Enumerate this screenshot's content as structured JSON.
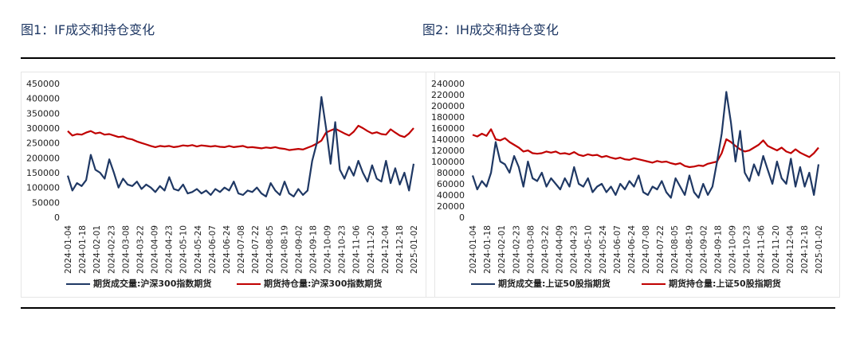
{
  "titles": {
    "left": "图1：IF成交和持仓变化",
    "right": "图2：IH成交和持仓变化"
  },
  "chart_data": [
    {
      "type": "line",
      "x_ticks": [
        "2024-01-04",
        "2024-01-18",
        "2024-02-01",
        "2024-02-23",
        "2024-03-08",
        "2024-03-22",
        "2024-04-09",
        "2024-04-23",
        "2024-05-10",
        "2024-05-24",
        "2024-06-07",
        "2024-06-24",
        "2024-07-08",
        "2024-07-22",
        "2024-08-05",
        "2024-08-19",
        "2024-09-02",
        "2024-09-18",
        "2024-10-09",
        "2024-10-23",
        "2024-11-06",
        "2024-11-20",
        "2024-12-04",
        "2024-12-18",
        "2025-01-02"
      ],
      "y_ticks": [
        "0",
        "50000",
        "100000",
        "150000",
        "200000",
        "250000",
        "300000",
        "350000",
        "400000",
        "450000"
      ],
      "ylim": [
        0,
        450000
      ],
      "series": [
        {
          "name": "期货成交量:沪深300指数期货",
          "color": "#1f3864",
          "values": [
            140000,
            90000,
            115000,
            105000,
            125000,
            210000,
            160000,
            150000,
            130000,
            195000,
            150000,
            100000,
            130000,
            110000,
            105000,
            120000,
            95000,
            110000,
            100000,
            85000,
            105000,
            90000,
            135000,
            95000,
            90000,
            110000,
            80000,
            85000,
            95000,
            80000,
            90000,
            75000,
            95000,
            85000,
            100000,
            90000,
            120000,
            80000,
            75000,
            90000,
            85000,
            100000,
            80000,
            70000,
            115000,
            90000,
            75000,
            120000,
            80000,
            70000,
            95000,
            75000,
            90000,
            190000,
            250000,
            405000,
            300000,
            180000,
            320000,
            160000,
            130000,
            170000,
            140000,
            190000,
            150000,
            120000,
            175000,
            130000,
            120000,
            190000,
            115000,
            165000,
            110000,
            150000,
            90000,
            180000
          ]
        },
        {
          "name": "期货持仓量:沪深300指数期货",
          "color": "#c00000",
          "values": [
            290000,
            275000,
            280000,
            278000,
            285000,
            290000,
            282000,
            285000,
            278000,
            280000,
            275000,
            270000,
            272000,
            265000,
            262000,
            255000,
            250000,
            245000,
            240000,
            236000,
            240000,
            238000,
            240000,
            236000,
            238000,
            242000,
            240000,
            243000,
            238000,
            242000,
            240000,
            238000,
            240000,
            237000,
            236000,
            240000,
            236000,
            238000,
            240000,
            235000,
            236000,
            234000,
            232000,
            235000,
            233000,
            236000,
            232000,
            230000,
            226000,
            228000,
            230000,
            228000,
            234000,
            240000,
            248000,
            258000,
            285000,
            292000,
            298000,
            290000,
            282000,
            275000,
            288000,
            308000,
            300000,
            290000,
            282000,
            286000,
            280000,
            278000,
            296000,
            285000,
            275000,
            270000,
            282000,
            300000
          ]
        }
      ]
    },
    {
      "type": "line",
      "x_ticks": [
        "2024-01-04",
        "2024-01-18",
        "2024-02-01",
        "2024-02-23",
        "2024-03-08",
        "2024-03-22",
        "2024-04-09",
        "2024-04-23",
        "2024-05-10",
        "2024-05-24",
        "2024-06-07",
        "2024-06-24",
        "2024-07-08",
        "2024-07-22",
        "2024-08-05",
        "2024-08-19",
        "2024-09-02",
        "2024-09-18",
        "2024-10-09",
        "2024-10-23",
        "2024-11-06",
        "2024-11-20",
        "2024-12-04",
        "2024-12-18",
        "2025-01-02"
      ],
      "y_ticks": [
        "0",
        "20000",
        "40000",
        "60000",
        "80000",
        "100000",
        "120000",
        "140000",
        "160000",
        "180000",
        "200000",
        "220000",
        "240000"
      ],
      "ylim": [
        0,
        240000
      ],
      "series": [
        {
          "name": "期货成交量:上证50股指期货",
          "color": "#1f3864",
          "values": [
            75000,
            50000,
            65000,
            55000,
            80000,
            135000,
            100000,
            95000,
            80000,
            110000,
            90000,
            55000,
            100000,
            70000,
            65000,
            80000,
            55000,
            70000,
            60000,
            50000,
            70000,
            55000,
            90000,
            60000,
            55000,
            70000,
            45000,
            55000,
            60000,
            45000,
            55000,
            40000,
            60000,
            50000,
            65000,
            55000,
            75000,
            45000,
            40000,
            55000,
            50000,
            65000,
            45000,
            35000,
            70000,
            55000,
            40000,
            75000,
            45000,
            35000,
            60000,
            40000,
            55000,
            100000,
            150000,
            225000,
            170000,
            100000,
            155000,
            80000,
            65000,
            95000,
            75000,
            110000,
            85000,
            60000,
            100000,
            70000,
            60000,
            105000,
            55000,
            90000,
            55000,
            80000,
            40000,
            95000
          ]
        },
        {
          "name": "期货持仓量:上证50股指期货",
          "color": "#c00000",
          "values": [
            148000,
            145000,
            150000,
            146000,
            158000,
            140000,
            138000,
            142000,
            135000,
            130000,
            125000,
            118000,
            120000,
            115000,
            114000,
            115000,
            118000,
            116000,
            118000,
            114000,
            115000,
            113000,
            117000,
            112000,
            110000,
            113000,
            111000,
            112000,
            108000,
            110000,
            107000,
            105000,
            107000,
            104000,
            103000,
            106000,
            104000,
            102000,
            100000,
            98000,
            101000,
            99000,
            100000,
            97000,
            95000,
            97000,
            92000,
            90000,
            91000,
            93000,
            92000,
            96000,
            98000,
            100000,
            115000,
            140000,
            135000,
            128000,
            122000,
            118000,
            120000,
            125000,
            130000,
            138000,
            128000,
            124000,
            120000,
            125000,
            118000,
            115000,
            122000,
            116000,
            112000,
            108000,
            115000,
            125000
          ]
        }
      ]
    }
  ]
}
